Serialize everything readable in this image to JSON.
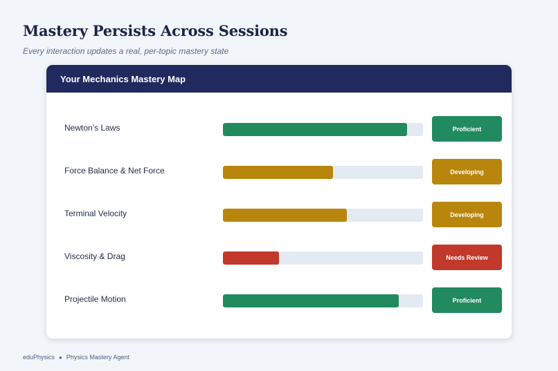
{
  "header": {
    "title": "Mastery Persists Across Sessions",
    "subtitle": "Every interaction updates a real, per-topic mastery state"
  },
  "card": {
    "title": "Your Mechanics Mastery Map",
    "topics": [
      {
        "name": "Newton’s Laws",
        "mastery": 0.92,
        "status": "Proficient",
        "color": "#218a5f"
      },
      {
        "name": "Force Balance & Net Force",
        "mastery": 0.55,
        "status": "Developing",
        "color": "#b8860d"
      },
      {
        "name": "Terminal Velocity",
        "mastery": 0.62,
        "status": "Developing",
        "color": "#b8860d"
      },
      {
        "name": "Viscosity & Drag",
        "mastery": 0.28,
        "status": "Needs Review",
        "color": "#c0392b"
      },
      {
        "name": "Projectile Motion",
        "mastery": 0.88,
        "status": "Proficient",
        "color": "#218a5f"
      }
    ]
  },
  "footer": {
    "brand": "eduPhysics",
    "separator": "●",
    "product": "Physics Mastery Agent"
  }
}
